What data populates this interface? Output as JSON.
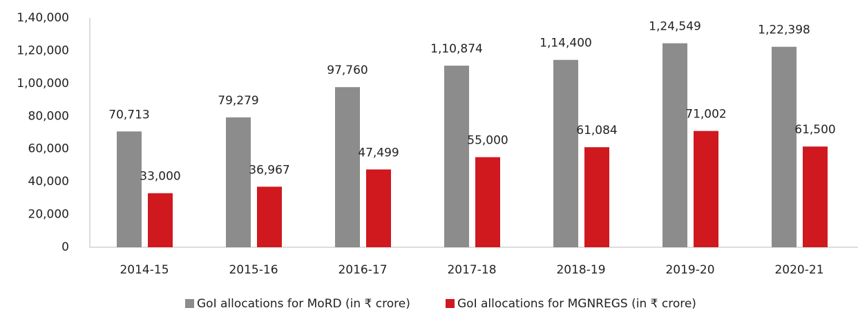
{
  "chart_data": {
    "type": "bar",
    "categories": [
      "2014-15",
      "2015-16",
      "2016-17",
      "2017-18",
      "2018-19",
      "2019-20",
      "2020-21"
    ],
    "series": [
      {
        "name": "GoI allocations for MoRD (in ₹ crore)",
        "color": "#8c8c8c",
        "values": [
          70713,
          79279,
          97760,
          110874,
          114400,
          124549,
          122398
        ],
        "value_labels": [
          "70,713",
          "79,279",
          "97,760",
          "1,10,874",
          "1,14,400",
          "1,24,549",
          "1,22,398"
        ]
      },
      {
        "name": "GoI allocations for MGNREGS (in ₹ crore)",
        "color": "#d0181f",
        "values": [
          33000,
          36967,
          47499,
          55000,
          61084,
          71002,
          61500
        ],
        "value_labels": [
          "33,000",
          "36,967",
          "47,499",
          "55,000",
          "61,084",
          "71,002",
          "61,500"
        ]
      }
    ],
    "ylim": [
      0,
      140000
    ],
    "yticks": [
      0,
      {
        "value": 20000,
        "label": "20,000"
      },
      {
        "value": 40000,
        "label": "40,000"
      },
      {
        "value": 60000,
        "label": "60,000"
      },
      {
        "value": 80000,
        "label": "80,000"
      },
      {
        "value": 100000,
        "label": "1,00,000"
      },
      {
        "value": 120000,
        "label": "1,20,000"
      },
      {
        "value": 140000,
        "label": "1,40,000"
      }
    ],
    "grid": false,
    "legend": "bottom"
  }
}
